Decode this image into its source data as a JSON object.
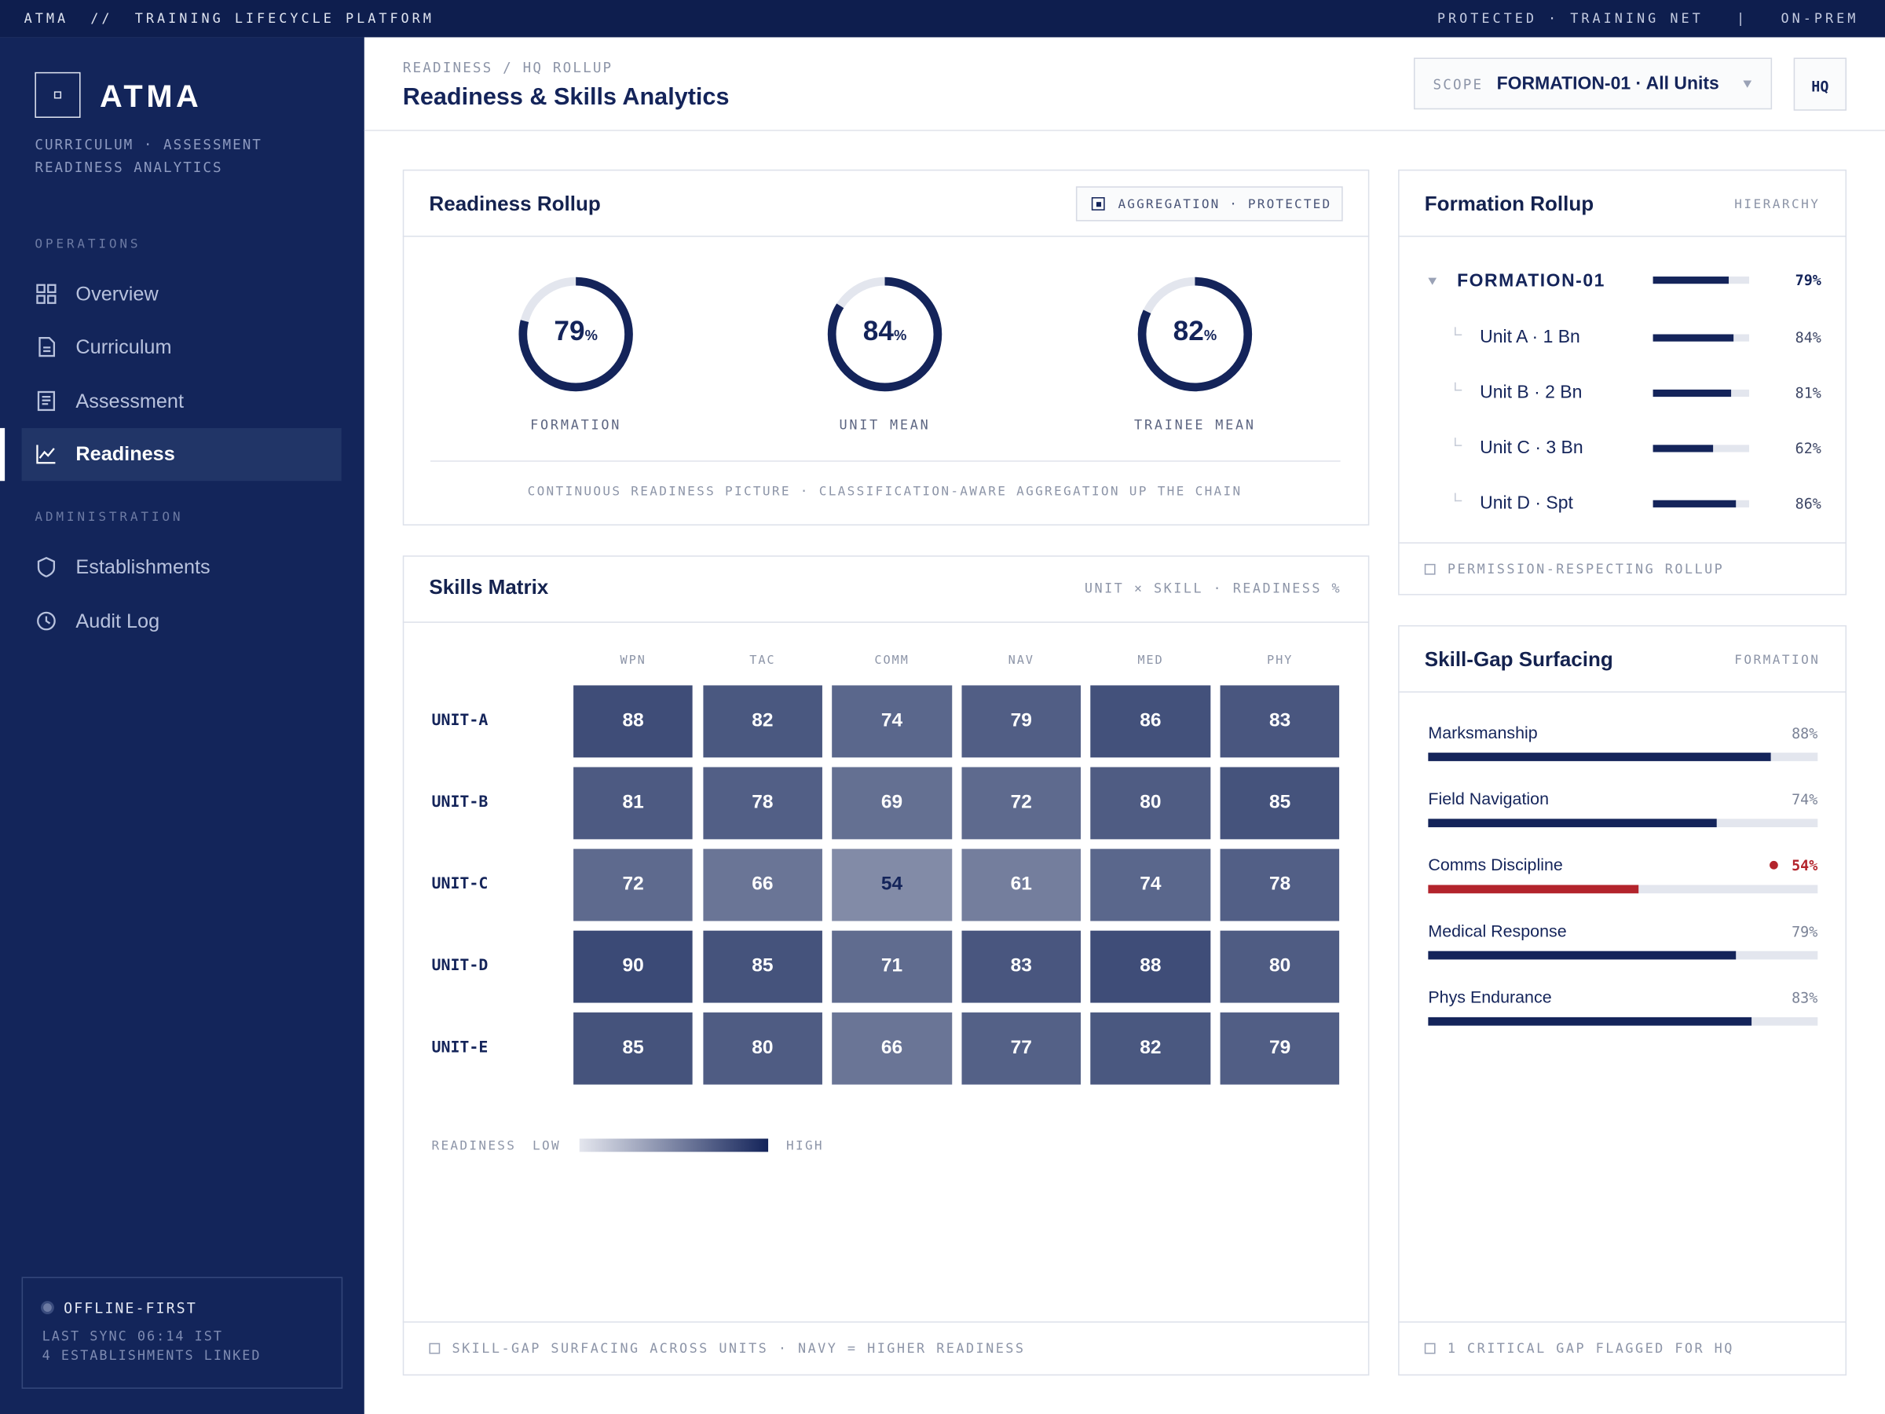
{
  "topbar": {
    "left": "ATMA  //  TRAINING LIFECYCLE PLATFORM",
    "right": "PROTECTED · TRAINING NET   |   ON-PREM"
  },
  "sidebar": {
    "brand": "ATMA",
    "tagline": [
      "CURRICULUM · ASSESSMENT",
      "READINESS ANALYTICS"
    ],
    "sections": [
      {
        "title": "OPERATIONS",
        "items": [
          {
            "label": "Overview",
            "icon": "grid"
          },
          {
            "label": "Curriculum",
            "icon": "doc"
          },
          {
            "label": "Assessment",
            "icon": "list"
          },
          {
            "label": "Readiness",
            "icon": "chart",
            "active": true
          }
        ]
      },
      {
        "title": "ADMINISTRATION",
        "items": [
          {
            "label": "Establishments",
            "icon": "shield"
          },
          {
            "label": "Audit Log",
            "icon": "clock"
          }
        ]
      }
    ],
    "status": {
      "title": "OFFLINE-FIRST",
      "lines": [
        "LAST SYNC 06:14 IST",
        "4 ESTABLISHMENTS LINKED"
      ]
    }
  },
  "header": {
    "breadcrumb": "READINESS / HQ ROLLUP",
    "title": "Readiness & Skills Analytics",
    "scope_label": "SCOPE",
    "scope": "FORMATION-01 · All Units",
    "badge": "HQ"
  },
  "readiness_rollup": {
    "title": "Readiness Rollup",
    "badge": "AGGREGATION · PROTECTED",
    "rings": [
      {
        "value": 79,
        "unit": "%",
        "label": "FORMATION"
      },
      {
        "value": 84,
        "unit": "%",
        "label": "UNIT MEAN"
      },
      {
        "value": 82,
        "unit": "%",
        "label": "TRAINEE MEAN"
      }
    ],
    "footer": "CONTINUOUS READINESS PICTURE · CLASSIFICATION-AWARE AGGREGATION UP THE CHAIN"
  },
  "skills_matrix": {
    "title": "Skills Matrix",
    "subtitle": "UNIT × SKILL · READINESS %",
    "columns": [
      "WPN",
      "TAC",
      "COMM",
      "NAV",
      "MED",
      "PHY"
    ],
    "rows": [
      {
        "name": "UNIT-A",
        "values": [
          88,
          82,
          74,
          79,
          86,
          83
        ]
      },
      {
        "name": "UNIT-B",
        "values": [
          81,
          78,
          69,
          72,
          80,
          85
        ]
      },
      {
        "name": "UNIT-C",
        "values": [
          72,
          66,
          54,
          61,
          74,
          78
        ]
      },
      {
        "name": "UNIT-D",
        "values": [
          90,
          85,
          71,
          83,
          88,
          80
        ]
      },
      {
        "name": "UNIT-E",
        "values": [
          85,
          80,
          66,
          77,
          82,
          79
        ]
      }
    ],
    "legend": {
      "title": "READINESS",
      "low": "LOW",
      "high": "HIGH"
    },
    "footer": "SKILL-GAP SURFACING ACROSS UNITS · NAVY = HIGHER READINESS"
  },
  "formation_rollup": {
    "title": "Formation Rollup",
    "subtitle": "HIERARCHY",
    "root": {
      "name": "FORMATION-01",
      "value": 79,
      "label": "79%"
    },
    "children": [
      {
        "name": "Unit A · 1 Bn",
        "value": 84,
        "label": "84%"
      },
      {
        "name": "Unit B · 2 Bn",
        "value": 81,
        "label": "81%"
      },
      {
        "name": "Unit C · 3 Bn",
        "value": 62,
        "label": "62%"
      },
      {
        "name": "Unit D · Spt",
        "value": 86,
        "label": "86%"
      }
    ],
    "footer": "PERMISSION-RESPECTING ROLLUP"
  },
  "skill_gaps": {
    "title": "Skill-Gap Surfacing",
    "subtitle": "FORMATION",
    "items": [
      {
        "name": "Marksmanship",
        "value": 88,
        "label": "88%",
        "color": "#14245a"
      },
      {
        "name": "Field Navigation",
        "value": 74,
        "label": "74%",
        "color": "#14245a"
      },
      {
        "name": "Comms Discipline",
        "value": 54,
        "label": "54%",
        "color": "#b3242c",
        "flagged": true
      },
      {
        "name": "Medical Response",
        "value": 79,
        "label": "79%",
        "color": "#14245a"
      },
      {
        "name": "Phys Endurance",
        "value": 83,
        "label": "83%",
        "color": "#14245a"
      }
    ],
    "footer": "1 CRITICAL GAP FLAGGED FOR HQ"
  }
}
